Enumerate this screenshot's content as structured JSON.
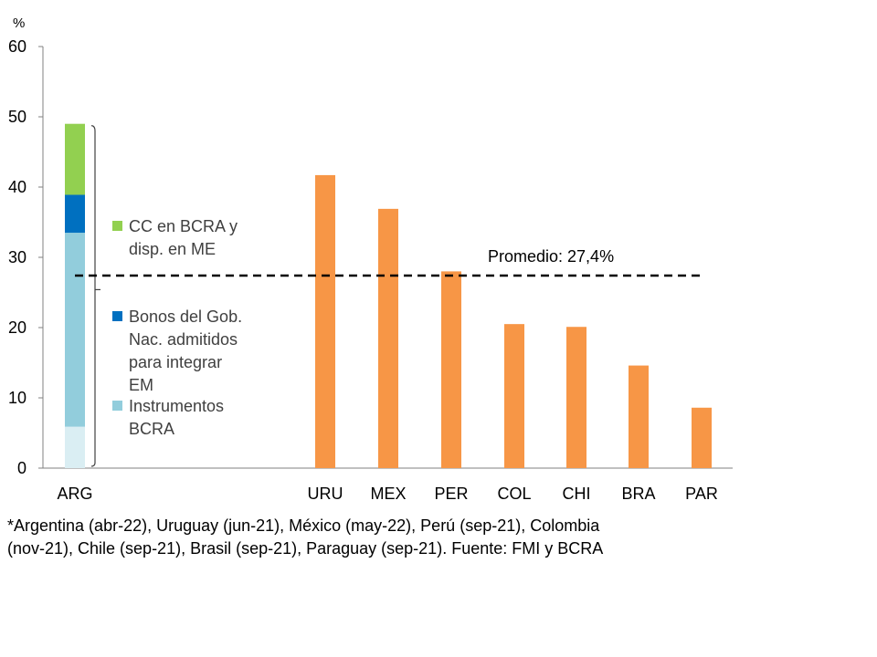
{
  "chart_data": {
    "type": "bar",
    "unit_label": "%",
    "ylim": [
      0,
      60
    ],
    "yticks": [
      0,
      10,
      20,
      30,
      40,
      50,
      60
    ],
    "categories": [
      "ARG",
      "URU",
      "MEX",
      "PER",
      "COL",
      "CHI",
      "BRA",
      "PAR"
    ],
    "stacked_category": "ARG",
    "stack": [
      {
        "name": "Instrumentos BCRA",
        "values": [
          33.5
        ],
        "color": "#92cddc"
      },
      {
        "name": "Bonos del Gob. Nac. admitidos para integrar EM",
        "values": [
          5.4
        ],
        "color": "#0070c0"
      },
      {
        "name": "CC en BCRA y disp. en ME",
        "values": [
          10.1
        ],
        "color": "#92d050"
      }
    ],
    "arg_base_shade": {
      "value": 5.9,
      "color": "#daeef3"
    },
    "series": [
      {
        "values": [
          null,
          41.7,
          36.9,
          28.0,
          20.5,
          20.1,
          14.6,
          8.6
        ],
        "color": "#f79646"
      }
    ],
    "average": {
      "value": 27.4,
      "label": "Promedio: 27,4%"
    },
    "legend": [
      {
        "line1": "CC en BCRA y",
        "line2": "disp. en ME",
        "color": "#92d050"
      },
      {
        "line1": "Bonos del Gob.",
        "line2": "Nac. admitidos",
        "line3": "para integrar",
        "line4": "EM",
        "color": "#0070c0"
      },
      {
        "line1": "Instrumentos",
        "line2": "BCRA",
        "color": "#92cddc"
      }
    ]
  },
  "footnote_line1": "*Argentina (abr-22), Uruguay (jun-21), México (may-22), Perú (sep-21), Colombia",
  "footnote_line2": "(nov-21), Chile (sep-21), Brasil (sep-21), Paraguay (sep-21). Fuente: FMI y BCRA"
}
